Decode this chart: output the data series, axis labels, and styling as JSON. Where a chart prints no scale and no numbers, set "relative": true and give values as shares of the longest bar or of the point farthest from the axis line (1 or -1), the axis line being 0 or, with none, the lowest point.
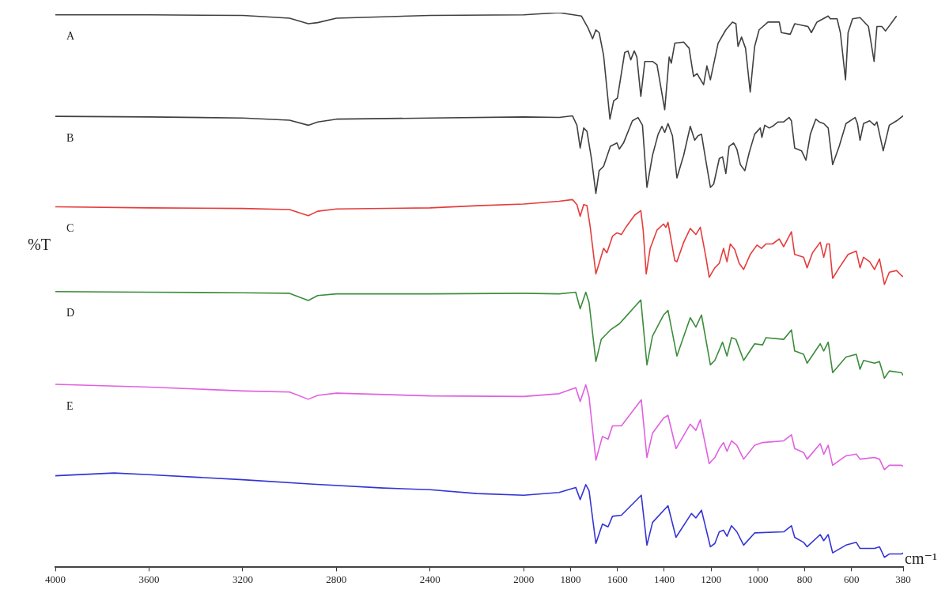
{
  "chart_data": {
    "type": "line",
    "relative": true,
    "xlabel": "cm⁻¹",
    "ylabel": "%T",
    "legend": false,
    "xlim": [
      4000,
      380
    ],
    "xticks": [
      4000,
      3600,
      3200,
      2800,
      2400,
      2000,
      1800,
      1600,
      1400,
      1200,
      1000,
      800,
      600,
      380
    ],
    "series": [
      {
        "name": "A",
        "color": "#404040",
        "x": [
          4000,
          3600,
          3200,
          3000,
          2920,
          2880,
          2800,
          2400,
          2000,
          1849,
          1754,
          1725,
          1706,
          1692,
          1678,
          1659,
          1632,
          1616,
          1600,
          1569,
          1555,
          1543,
          1528,
          1517,
          1500,
          1483,
          1450,
          1431,
          1398,
          1379,
          1370,
          1355,
          1317,
          1294,
          1275,
          1260,
          1232,
          1218,
          1203,
          1170,
          1137,
          1109,
          1094,
          1085,
          1070,
          1053,
          1033,
          1014,
          995,
          957,
          909,
          900,
          862,
          843,
          786,
          772,
          748,
          700,
          691,
          662,
          648,
          626,
          615,
          596,
          564,
          528,
          504,
          492,
          471,
          455,
          408
        ],
        "values": [
          0.996,
          0.996,
          0.995,
          0.99,
          0.98,
          0.982,
          0.99,
          0.995,
          0.996,
          1,
          0.994,
          0.972,
          0.953,
          0.969,
          0.964,
          0.923,
          0.808,
          0.841,
          0.846,
          0.928,
          0.931,
          0.915,
          0.931,
          0.92,
          0.849,
          0.912,
          0.912,
          0.906,
          0.825,
          0.92,
          0.909,
          0.945,
          0.947,
          0.936,
          0.885,
          0.89,
          0.87,
          0.904,
          0.879,
          0.945,
          0.969,
          0.983,
          0.98,
          0.939,
          0.956,
          0.936,
          0.857,
          0.939,
          0.969,
          0.983,
          0.983,
          0.964,
          0.961,
          0.98,
          0.975,
          0.964,
          0.983,
          0.994,
          0.989,
          0.989,
          0.964,
          0.879,
          0.964,
          0.989,
          0.991,
          0.975,
          0.912,
          0.975,
          0.975,
          0.967,
          0.994
        ]
      },
      {
        "name": "B",
        "color": "#404040",
        "x": [
          4000,
          3600,
          3200,
          3000,
          2920,
          2880,
          2800,
          2400,
          2000,
          1849,
          1792,
          1773,
          1759,
          1744,
          1730,
          1711,
          1692,
          1678,
          1659,
          1630,
          1602,
          1592,
          1574,
          1536,
          1512,
          1493,
          1474,
          1450,
          1426,
          1410,
          1398,
          1384,
          1365,
          1346,
          1317,
          1289,
          1270,
          1256,
          1241,
          1222,
          1203,
          1189,
          1165,
          1151,
          1137,
          1123,
          1104,
          1090,
          1075,
          1056,
          1037,
          1014,
          990,
          983,
          971,
          952,
          938,
          914,
          890,
          867,
          857,
          843,
          814,
          795,
          776,
          753,
          738,
          719,
          700,
          681,
          653,
          624,
          585,
          575,
          564,
          549,
          523,
          502,
          492,
          465,
          439,
          408,
          380
        ],
        "values": [
          0.813,
          0.812,
          0.81,
          0.806,
          0.797,
          0.803,
          0.808,
          0.81,
          0.812,
          0.811,
          0.814,
          0.797,
          0.756,
          0.792,
          0.786,
          0.737,
          0.674,
          0.715,
          0.723,
          0.759,
          0.765,
          0.754,
          0.765,
          0.805,
          0.811,
          0.797,
          0.685,
          0.743,
          0.781,
          0.795,
          0.784,
          0.8,
          0.778,
          0.702,
          0.743,
          0.795,
          0.77,
          0.778,
          0.781,
          0.732,
          0.685,
          0.691,
          0.737,
          0.74,
          0.71,
          0.759,
          0.765,
          0.754,
          0.726,
          0.715,
          0.748,
          0.781,
          0.792,
          0.775,
          0.797,
          0.792,
          0.795,
          0.803,
          0.803,
          0.811,
          0.805,
          0.756,
          0.751,
          0.734,
          0.781,
          0.808,
          0.803,
          0.8,
          0.792,
          0.726,
          0.759,
          0.8,
          0.811,
          0.8,
          0.77,
          0.8,
          0.805,
          0.797,
          0.803,
          0.751,
          0.797,
          0.805,
          0.814
        ]
      },
      {
        "name": "C",
        "color": "#e53c3c",
        "x": [
          4000,
          3600,
          3200,
          3000,
          2920,
          2880,
          2800,
          2400,
          2200,
          2000,
          1849,
          1792,
          1773,
          1759,
          1744,
          1730,
          1716,
          1692,
          1678,
          1659,
          1645,
          1621,
          1602,
          1583,
          1564,
          1526,
          1500,
          1490,
          1477,
          1460,
          1431,
          1403,
          1393,
          1384,
          1355,
          1346,
          1317,
          1289,
          1265,
          1246,
          1222,
          1208,
          1184,
          1165,
          1147,
          1132,
          1118,
          1099,
          1080,
          1061,
          1033,
          1004,
          985,
          966,
          938,
          909,
          890,
          857,
          843,
          805,
          790,
          767,
          734,
          719,
          705,
          695,
          681,
          653,
          615,
          580,
          564,
          549,
          523,
          502,
          481,
          460,
          439,
          408,
          387,
          380
        ],
        "values": [
          0.65,
          0.648,
          0.647,
          0.645,
          0.634,
          0.642,
          0.646,
          0.648,
          0.652,
          0.655,
          0.66,
          0.663,
          0.654,
          0.633,
          0.654,
          0.652,
          0.613,
          0.529,
          0.548,
          0.575,
          0.567,
          0.597,
          0.603,
          0.6,
          0.613,
          0.635,
          0.643,
          0.608,
          0.529,
          0.575,
          0.608,
          0.619,
          0.613,
          0.622,
          0.553,
          0.551,
          0.586,
          0.611,
          0.6,
          0.613,
          0.559,
          0.523,
          0.54,
          0.548,
          0.575,
          0.551,
          0.583,
          0.573,
          0.548,
          0.537,
          0.564,
          0.581,
          0.575,
          0.583,
          0.583,
          0.592,
          0.578,
          0.605,
          0.564,
          0.559,
          0.54,
          0.567,
          0.586,
          0.559,
          0.583,
          0.583,
          0.521,
          0.54,
          0.564,
          0.57,
          0.54,
          0.559,
          0.551,
          0.537,
          0.556,
          0.51,
          0.532,
          0.535,
          0.526,
          0.524
        ]
      },
      {
        "name": "D",
        "color": "#3c8c3c",
        "x": [
          4000,
          3600,
          3200,
          3000,
          2920,
          2880,
          2800,
          2400,
          2000,
          1849,
          1778,
          1759,
          1735,
          1721,
          1692,
          1669,
          1630,
          1592,
          1564,
          1500,
          1474,
          1450,
          1403,
          1384,
          1346,
          1289,
          1265,
          1241,
          1203,
          1184,
          1151,
          1132,
          1113,
          1094,
          1061,
          1014,
          980,
          966,
          890,
          857,
          843,
          805,
          790,
          734,
          719,
          700,
          681,
          624,
          580,
          564,
          549,
          502,
          481,
          460,
          439,
          387,
          380
        ],
        "values": [
          0.497,
          0.496,
          0.495,
          0.494,
          0.481,
          0.49,
          0.493,
          0.493,
          0.494,
          0.493,
          0.496,
          0.466,
          0.496,
          0.477,
          0.371,
          0.411,
          0.428,
          0.439,
          0.452,
          0.482,
          0.365,
          0.417,
          0.455,
          0.463,
          0.381,
          0.45,
          0.433,
          0.455,
          0.365,
          0.373,
          0.406,
          0.381,
          0.414,
          0.411,
          0.373,
          0.403,
          0.401,
          0.414,
          0.411,
          0.428,
          0.39,
          0.384,
          0.368,
          0.403,
          0.39,
          0.406,
          0.351,
          0.379,
          0.384,
          0.357,
          0.373,
          0.368,
          0.371,
          0.341,
          0.354,
          0.351,
          0.346
        ]
      },
      {
        "name": "E",
        "color": "#e060e0",
        "x": [
          4000,
          3600,
          3200,
          3000,
          2920,
          2880,
          2800,
          2400,
          2000,
          1849,
          1778,
          1759,
          1735,
          1721,
          1692,
          1664,
          1640,
          1621,
          1583,
          1498,
          1474,
          1450,
          1403,
          1384,
          1350,
          1289,
          1265,
          1246,
          1208,
          1184,
          1165,
          1147,
          1132,
          1113,
          1090,
          1061,
          1014,
          980,
          890,
          857,
          843,
          805,
          790,
          734,
          719,
          700,
          681,
          624,
          580,
          564,
          502,
          481,
          460,
          439,
          387,
          380
        ],
        "values": [
          0.33,
          0.325,
          0.318,
          0.316,
          0.303,
          0.31,
          0.314,
          0.309,
          0.308,
          0.313,
          0.324,
          0.299,
          0.329,
          0.307,
          0.193,
          0.236,
          0.231,
          0.255,
          0.255,
          0.302,
          0.198,
          0.242,
          0.269,
          0.274,
          0.214,
          0.258,
          0.247,
          0.266,
          0.187,
          0.198,
          0.214,
          0.225,
          0.209,
          0.228,
          0.22,
          0.195,
          0.22,
          0.225,
          0.228,
          0.239,
          0.214,
          0.207,
          0.195,
          0.223,
          0.204,
          0.22,
          0.184,
          0.201,
          0.204,
          0.195,
          0.198,
          0.195,
          0.176,
          0.184,
          0.184,
          0.182
        ]
      },
      {
        "color": "#3434d4",
        "x": [
          4000,
          3750,
          3600,
          3200,
          2900,
          2600,
          2400,
          2200,
          2000,
          1849,
          1778,
          1759,
          1735,
          1721,
          1692,
          1664,
          1640,
          1621,
          1583,
          1498,
          1474,
          1450,
          1384,
          1350,
          1284,
          1265,
          1241,
          1203,
          1184,
          1165,
          1147,
          1132,
          1113,
          1090,
          1061,
          1014,
          890,
          857,
          843,
          805,
          790,
          734,
          719,
          700,
          681,
          624,
          580,
          564,
          502,
          481,
          460,
          439,
          387,
          380
        ],
        "values": [
          0.165,
          0.17,
          0.167,
          0.158,
          0.15,
          0.143,
          0.14,
          0.133,
          0.13,
          0.135,
          0.144,
          0.122,
          0.149,
          0.138,
          0.043,
          0.078,
          0.073,
          0.092,
          0.094,
          0.13,
          0.04,
          0.081,
          0.111,
          0.054,
          0.097,
          0.089,
          0.103,
          0.037,
          0.043,
          0.064,
          0.067,
          0.056,
          0.075,
          0.064,
          0.04,
          0.062,
          0.064,
          0.075,
          0.054,
          0.045,
          0.037,
          0.059,
          0.048,
          0.059,
          0.026,
          0.04,
          0.045,
          0.034,
          0.034,
          0.037,
          0.018,
          0.024,
          0.024,
          0.026
        ]
      }
    ]
  }
}
